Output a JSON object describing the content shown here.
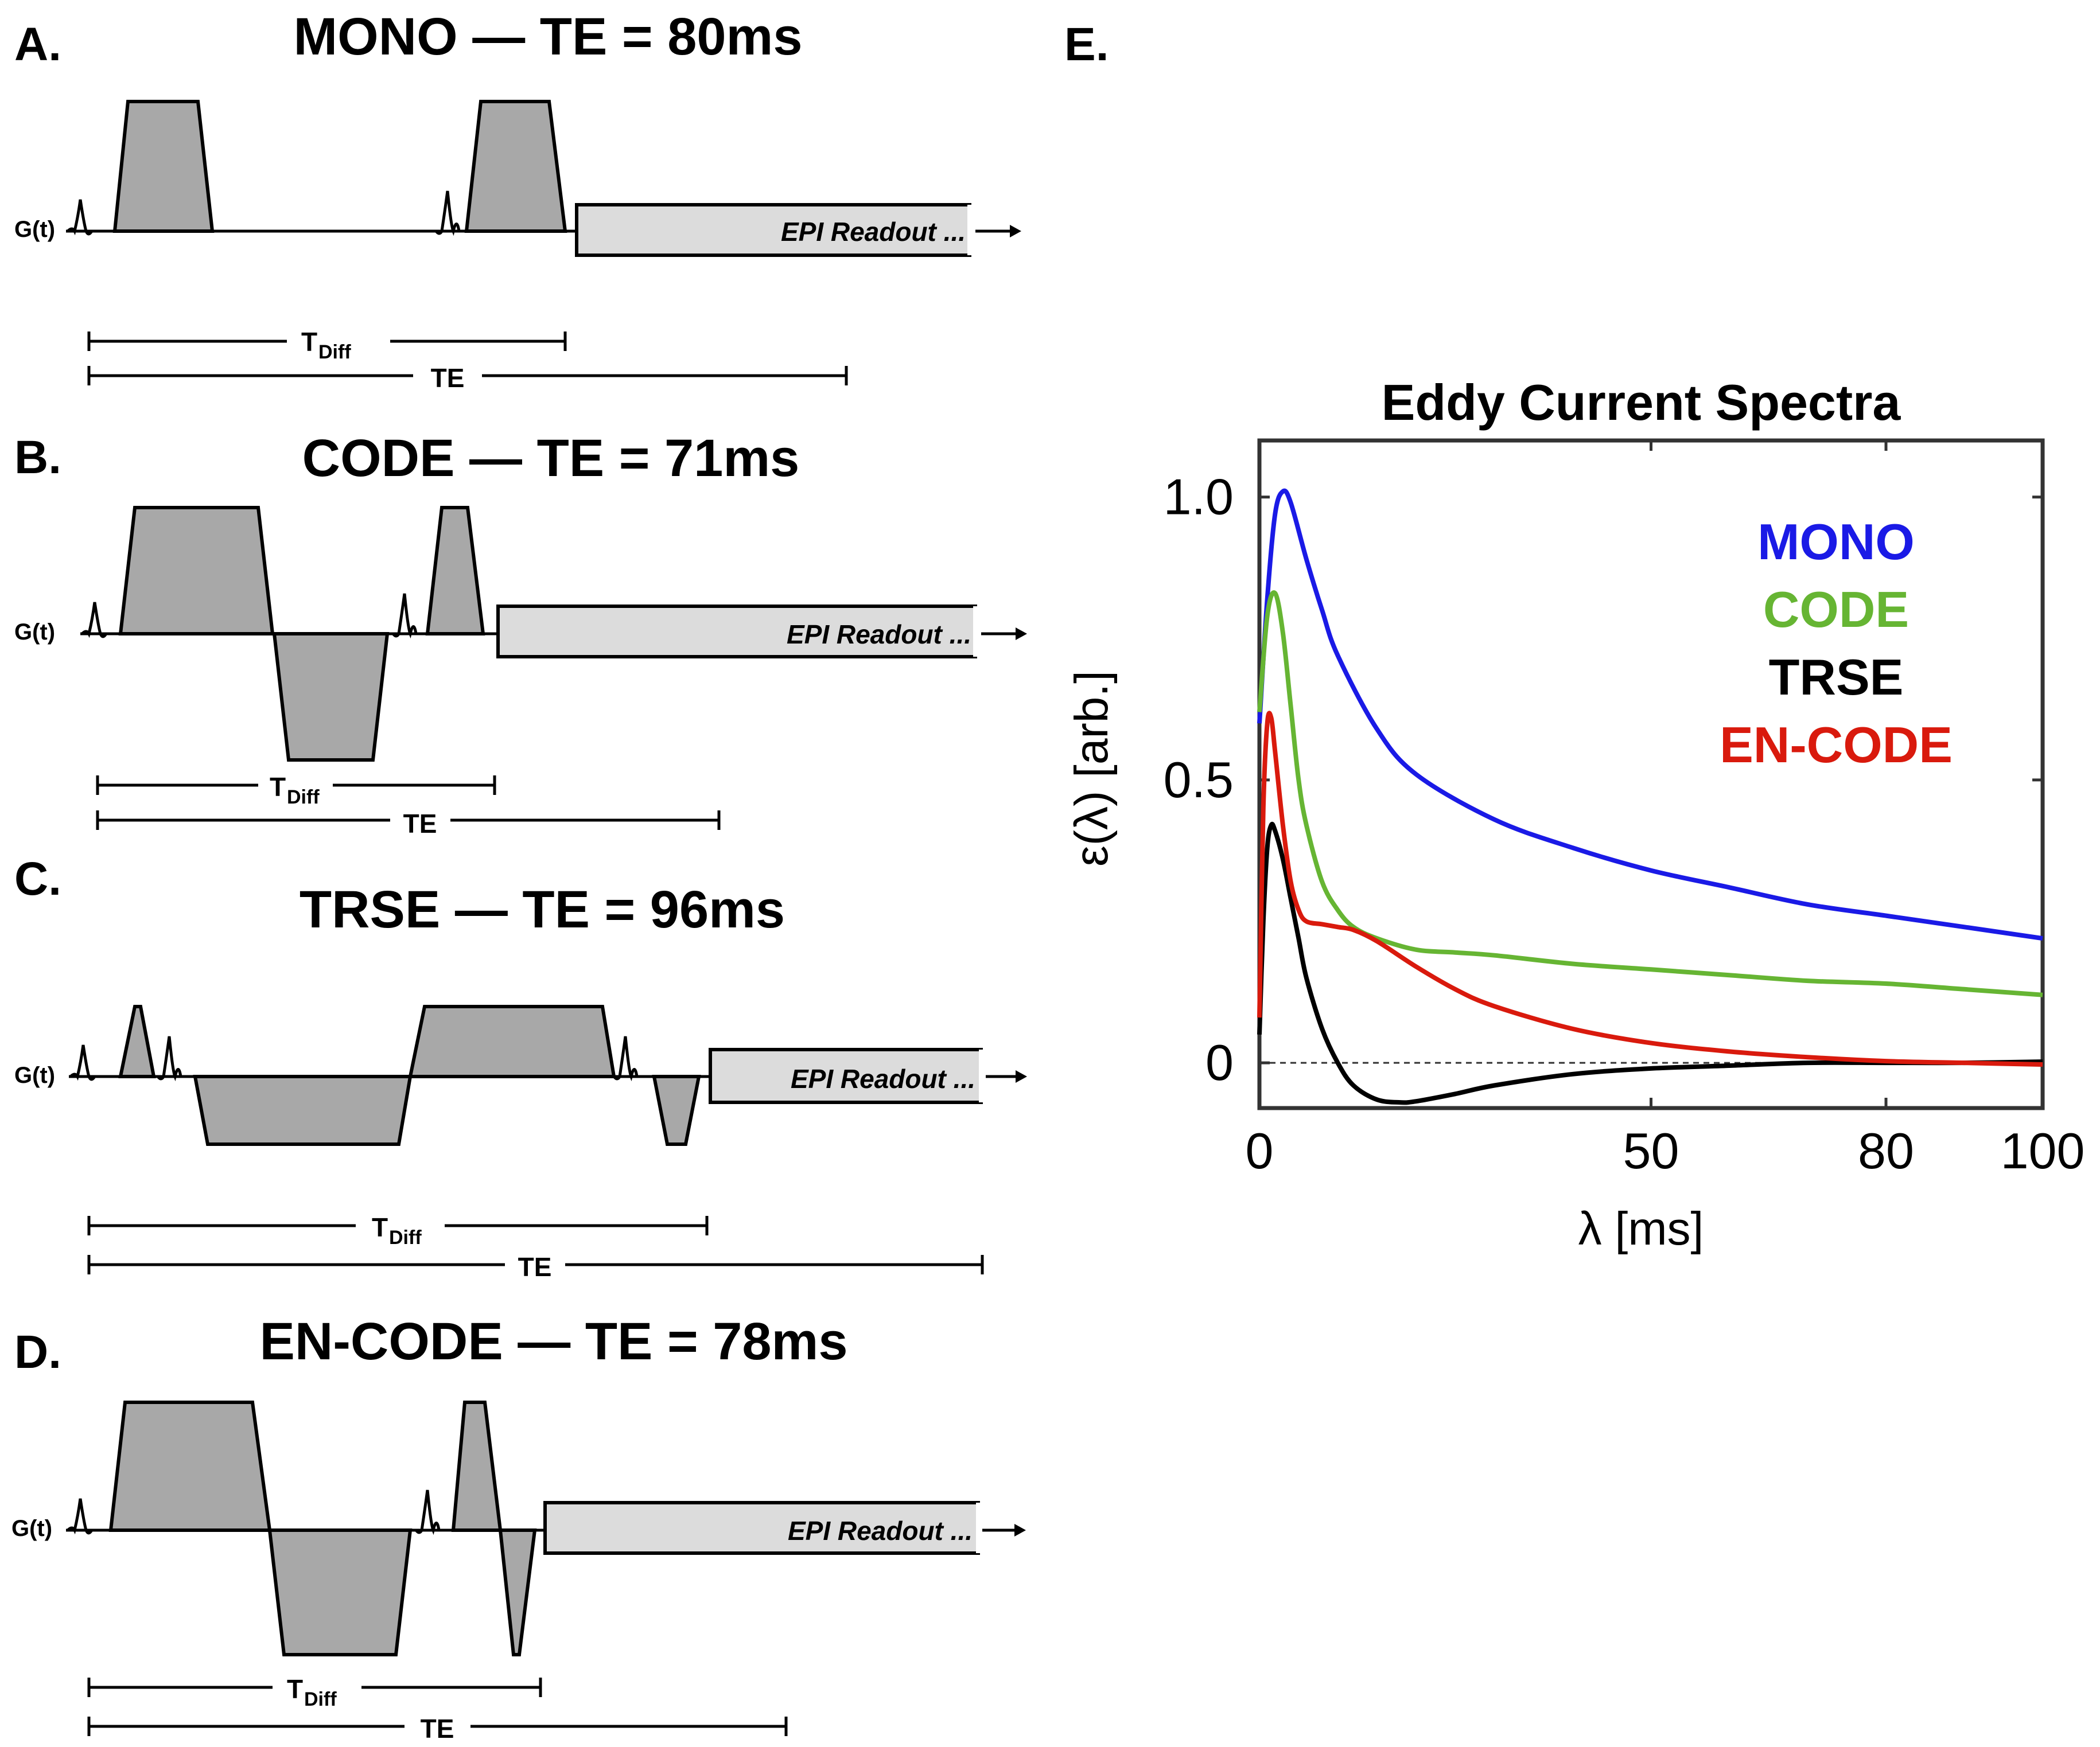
{
  "panels": {
    "a": {
      "letter": "A.",
      "title": "MONO — TE = 80ms"
    },
    "b": {
      "letter": "B.",
      "title": "CODE — TE = 71ms"
    },
    "c": {
      "letter": "C.",
      "title": "TRSE — TE = 96ms"
    },
    "d": {
      "letter": "D.",
      "title": "EN-CODE — TE = 78ms"
    },
    "e": {
      "letter": "E."
    }
  },
  "labels": {
    "gradient_axis": "G(t)",
    "epi_readout": "EPI Readout ...",
    "t_diff_main": "T",
    "t_diff_sub": "Diff",
    "te": "TE"
  },
  "colors": {
    "gradient_fill": "#a8a8a8",
    "readout_fill": "#dcdcdc",
    "mono": "#1a1ae6",
    "code": "#66b533",
    "trse": "#000000",
    "encode": "#d91a0d"
  },
  "chart_data": {
    "type": "line",
    "title": "Eddy Current Spectra",
    "xlabel": "λ [ms]",
    "ylabel": "ε(λ) [arb.]",
    "xlim": [
      0,
      100
    ],
    "ylim": [
      -0.08,
      1.1
    ],
    "xticks": [
      0,
      50,
      80,
      100
    ],
    "yticks": [
      0,
      0.5,
      1.0
    ],
    "ytick_labels": [
      "0",
      "0.5",
      "1.0"
    ],
    "zero_line": "dashed",
    "legend_position": "top-right",
    "series": [
      {
        "name": "MONO",
        "color": "#1a1ae6",
        "x": [
          0,
          1,
          2,
          3,
          4,
          6,
          8,
          10,
          15,
          20,
          30,
          40,
          50,
          60,
          70,
          80,
          90,
          100
        ],
        "y": [
          0.6,
          0.82,
          0.97,
          1.01,
          0.99,
          0.89,
          0.8,
          0.72,
          0.59,
          0.51,
          0.43,
          0.38,
          0.34,
          0.31,
          0.28,
          0.26,
          0.24,
          0.22
        ]
      },
      {
        "name": "CODE",
        "color": "#66b533",
        "x": [
          0,
          1,
          2,
          3,
          4,
          5,
          6,
          8,
          10,
          12,
          15,
          20,
          25,
          30,
          40,
          50,
          60,
          70,
          80,
          90,
          100
        ],
        "y": [
          0.62,
          0.79,
          0.83,
          0.76,
          0.63,
          0.5,
          0.42,
          0.32,
          0.27,
          0.24,
          0.22,
          0.2,
          0.195,
          0.19,
          0.175,
          0.165,
          0.155,
          0.145,
          0.14,
          0.13,
          0.12
        ]
      },
      {
        "name": "TRSE",
        "color": "#000000",
        "x": [
          0,
          0.5,
          1,
          1.5,
          2,
          3,
          4,
          5,
          6,
          8,
          10,
          12,
          15,
          18,
          20,
          25,
          30,
          40,
          50,
          60,
          70,
          80,
          90,
          100
        ],
        "y": [
          0.05,
          0.25,
          0.38,
          0.42,
          0.41,
          0.36,
          0.29,
          0.22,
          0.15,
          0.06,
          0.0,
          -0.04,
          -0.065,
          -0.07,
          -0.068,
          -0.055,
          -0.04,
          -0.02,
          -0.01,
          -0.005,
          0.0,
          0.0,
          0.0,
          0.002
        ]
      },
      {
        "name": "EN-CODE",
        "color": "#d91a0d",
        "x": [
          0,
          0.5,
          1,
          1.5,
          2,
          3,
          4,
          5,
          6,
          8,
          10,
          12,
          15,
          20,
          25,
          30,
          40,
          50,
          60,
          70,
          80,
          90,
          100
        ],
        "y": [
          0.08,
          0.45,
          0.6,
          0.61,
          0.55,
          0.42,
          0.32,
          0.27,
          0.25,
          0.245,
          0.24,
          0.235,
          0.215,
          0.17,
          0.13,
          0.1,
          0.06,
          0.035,
          0.02,
          0.01,
          0.003,
          0.0,
          -0.003
        ]
      }
    ]
  }
}
